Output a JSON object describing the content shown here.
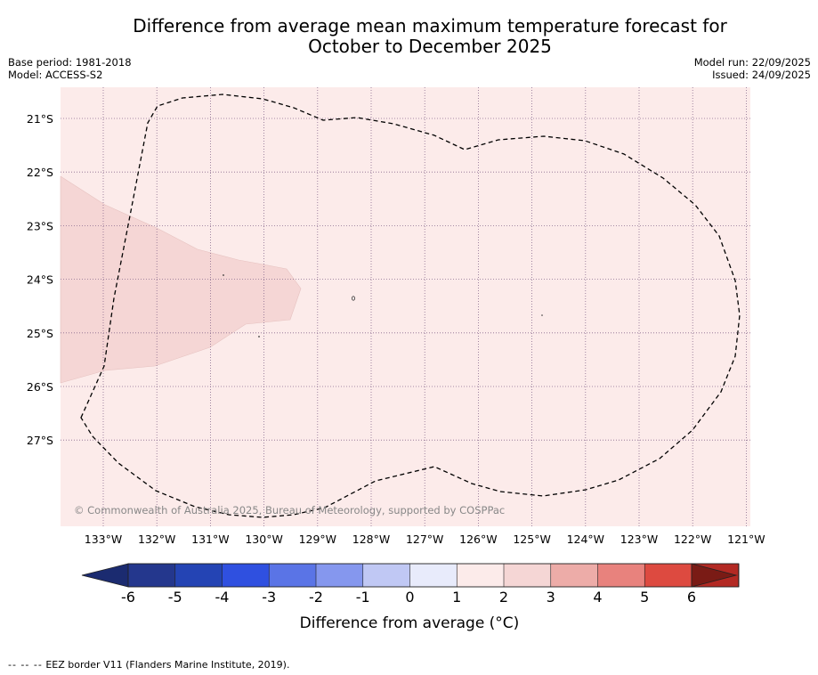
{
  "title_line1": "Difference from average mean maximum temperature forecast for",
  "title_line2": "October to December 2025",
  "base_period": "Base period: 1981-2018",
  "model": "Model: ACCESS-S2",
  "model_run": "Model run: 22/09/2025",
  "issued": "Issued: 24/09/2025",
  "copyright": "© Commonwealth of Australia 2025, Bureau of Meteorology, supported by COSPPac",
  "lat_labels": [
    "21°S",
    "22°S",
    "23°S",
    "24°S",
    "25°S",
    "26°S",
    "27°S"
  ],
  "lon_labels": [
    "133°W",
    "132°W",
    "131°W",
    "130°W",
    "129°W",
    "128°W",
    "127°W",
    "126°W",
    "125°W",
    "124°W",
    "123°W",
    "122°W",
    "121°W"
  ],
  "colorbar": {
    "label": "Difference from average (°C)",
    "ticks": [
      "-6",
      "-5",
      "-4",
      "-3",
      "-2",
      "-1",
      "0",
      "1",
      "2",
      "3",
      "4",
      "5",
      "6"
    ],
    "colors": [
      "#24378d",
      "#2444b4",
      "#2f50e0",
      "#5a74e6",
      "#8597ee",
      "#c0c8f4",
      "#e8ebfb",
      "#fcebea",
      "#f5d6d5",
      "#edaca8",
      "#e8827d",
      "#dd4a40",
      "#b32923"
    ],
    "under_color": "#1b2b70",
    "over_color": "#7a1b15"
  },
  "map_colors": {
    "background": "#fcebea",
    "warm_region": "#f5d6d5"
  },
  "footer_dash": "-- -- --",
  "footer": "EEZ border V11 (Flanders Marine Institute, 2019)."
}
